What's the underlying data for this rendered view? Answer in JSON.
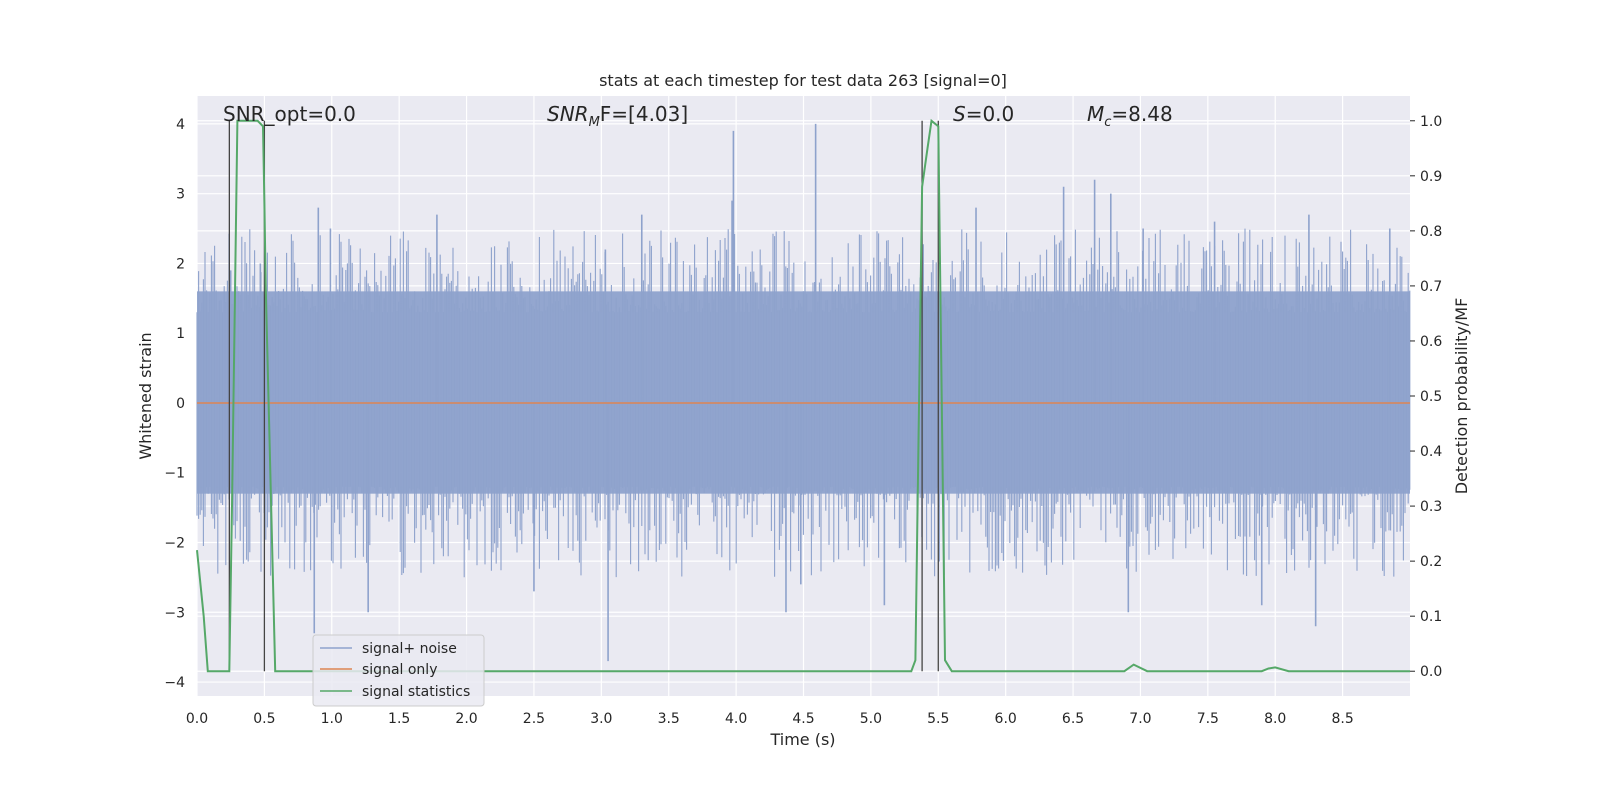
{
  "chart_data": {
    "type": "line",
    "title": "stats at each timestep for test data 263 [signal=0]",
    "xlabel": "Time (s)",
    "ylabel": "Whitened strain",
    "ylabel_right": "Detection probability/MF",
    "xlim": [
      0.0,
      9.0
    ],
    "ylim": [
      -4.2,
      4.4
    ],
    "ylim_right": [
      -0.045,
      1.045
    ],
    "x_ticks": [
      "0.0",
      "0.5",
      "1.0",
      "1.5",
      "2.0",
      "2.5",
      "3.0",
      "3.5",
      "4.0",
      "4.5",
      "5.0",
      "5.5",
      "6.0",
      "6.5",
      "7.0",
      "7.5",
      "8.0",
      "8.5"
    ],
    "y_ticks": [
      "−4",
      "−3",
      "−2",
      "−1",
      "0",
      "1",
      "2",
      "3",
      "4"
    ],
    "y_ticks_right": [
      "0.0",
      "0.1",
      "0.2",
      "0.3",
      "0.4",
      "0.5",
      "0.6",
      "0.7",
      "0.8",
      "0.9",
      "1.0"
    ],
    "grid": true,
    "legend_position": "lower-left",
    "annotations": {
      "snr_opt": "SNR_opt=0.0",
      "snr_mf_main": "SNR",
      "snr_mf_sub": "M",
      "snr_mf_rest": "F=[4.03]",
      "s_main": "S",
      "s_rest": "=0.0",
      "mc_main": "M",
      "mc_sub": "c",
      "mc_rest": "=8.48"
    },
    "vertical_markers": [
      0.24,
      0.5,
      5.38,
      5.5
    ],
    "series": [
      {
        "name": "signal+ noise",
        "color": "#8ea2cc",
        "axis": "left",
        "noise_envelope": {
          "band_low": -1.3,
          "band_high": 1.6
        },
        "spikes": [
          [
            0.25,
            1.9
          ],
          [
            0.47,
            2.0
          ],
          [
            0.9,
            2.8
          ],
          [
            0.87,
            -3.3
          ],
          [
            0.99,
            2.5
          ],
          [
            1.27,
            -3.0
          ],
          [
            1.78,
            2.7
          ],
          [
            2.5,
            -2.7
          ],
          [
            3.03,
            2.2
          ],
          [
            3.05,
            -3.7
          ],
          [
            3.3,
            2.7
          ],
          [
            3.98,
            3.9
          ],
          [
            3.97,
            2.9
          ],
          [
            4.37,
            -3.0
          ],
          [
            4.59,
            4.0
          ],
          [
            4.48,
            -2.6
          ],
          [
            5.1,
            -2.9
          ],
          [
            5.78,
            2.8
          ],
          [
            6.43,
            3.1
          ],
          [
            6.66,
            3.2
          ],
          [
            6.78,
            3.0
          ],
          [
            6.91,
            -3.0
          ],
          [
            7.02,
            2.5
          ],
          [
            7.55,
            2.6
          ],
          [
            7.9,
            -2.9
          ],
          [
            8.3,
            -3.2
          ],
          [
            8.25,
            2.7
          ],
          [
            8.85,
            2.5
          ]
        ]
      },
      {
        "name": "signal only",
        "color": "#dd8452",
        "axis": "left",
        "x": [
          0.0,
          9.0
        ],
        "y": [
          0.0,
          0.0
        ]
      },
      {
        "name": "signal statistics",
        "color": "#55a868",
        "axis": "right",
        "x": [
          0.0,
          0.05,
          0.08,
          0.15,
          0.24,
          0.26,
          0.3,
          0.32,
          0.35,
          0.45,
          0.49,
          0.5,
          0.51,
          0.54,
          0.58,
          0.7,
          1.0,
          2.0,
          3.0,
          4.0,
          5.0,
          5.3,
          5.33,
          5.38,
          5.42,
          5.45,
          5.5,
          5.51,
          5.55,
          5.6,
          5.7,
          6.0,
          6.5,
          6.88,
          6.95,
          7.05,
          7.5,
          7.9,
          7.95,
          8.0,
          8.1,
          8.5,
          9.0
        ],
        "y": [
          0.22,
          0.1,
          0.0,
          0.0,
          0.0,
          0.3,
          1.0,
          1.0,
          1.0,
          1.0,
          0.99,
          0.85,
          0.7,
          0.4,
          0.0,
          0.0,
          0.0,
          0.0,
          0.0,
          0.0,
          0.0,
          0.0,
          0.02,
          0.88,
          0.95,
          1.0,
          0.99,
          0.8,
          0.02,
          0.0,
          0.0,
          0.0,
          0.0,
          0.0,
          0.012,
          0.0,
          0.0,
          0.0,
          0.005,
          0.007,
          0.0,
          0.0,
          0.0
        ]
      }
    ]
  }
}
